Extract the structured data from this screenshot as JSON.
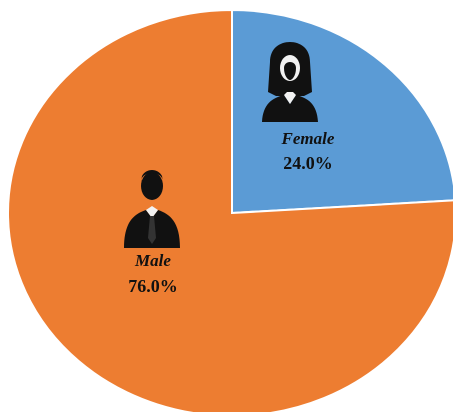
{
  "chart_data": {
    "type": "pie",
    "categories": [
      "Female",
      "Male"
    ],
    "values": [
      24.0,
      76.0
    ],
    "value_labels": [
      "24.0%",
      "76.0%"
    ],
    "colors": [
      "#5b9bd5",
      "#ed7d31"
    ]
  }
}
